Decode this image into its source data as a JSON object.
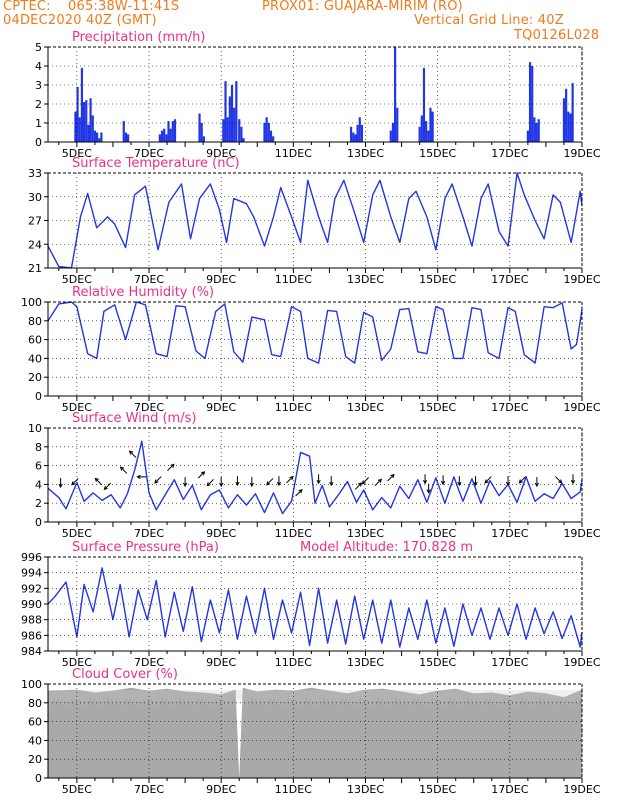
{
  "header": {
    "org": "CPTEC:",
    "coords": "065:38W-11:41S",
    "location": "PROX01: GUAJARA-MIRIM (RO)",
    "date": "04DEC2020 40Z (GMT)",
    "grid_note": "Vertical Grid Line: 40Z",
    "model": "TQ0126L028"
  },
  "colors": {
    "header": "#f07a1e",
    "title": "#e8308a",
    "series": "#2236e6",
    "cloud": "#a9a9a9",
    "arrow": "#000000"
  },
  "x_ticks": [
    "5DEC",
    "7DEC",
    "9DEC",
    "11DEC",
    "13DEC",
    "15DEC",
    "17DEC",
    "19DEC"
  ],
  "model_altitude": "Model Altitude: 170.828 m",
  "chart_data": [
    {
      "id": "precip",
      "type": "bar",
      "title": "Precipitation (mm/h)",
      "ylim": [
        0,
        5
      ],
      "yticks": [
        "0",
        "1",
        "2",
        "3",
        "4",
        "5"
      ],
      "x_range_days": [
        4.2,
        19.0
      ],
      "x": [
        4.96,
        5.02,
        5.08,
        5.14,
        5.2,
        5.26,
        5.32,
        5.38,
        5.44,
        5.5,
        5.56,
        5.62,
        5.68,
        6.3,
        6.36,
        6.42,
        7.3,
        7.36,
        7.42,
        7.48,
        7.54,
        7.6,
        7.66,
        7.72,
        8.4,
        8.46,
        8.52,
        9.06,
        9.12,
        9.18,
        9.24,
        9.3,
        9.36,
        9.42,
        9.5,
        9.56,
        9.62,
        10.2,
        10.26,
        10.32,
        10.38,
        10.44,
        12.6,
        12.66,
        12.72,
        12.78,
        12.84,
        12.9,
        13.7,
        13.76,
        13.82,
        13.88,
        14.5,
        14.56,
        14.62,
        14.68,
        14.74,
        14.8,
        14.86,
        17.5,
        17.56,
        17.62,
        17.68,
        17.74,
        17.8,
        18.5,
        18.56,
        18.62,
        18.68,
        18.74
      ],
      "values": [
        1.6,
        2.9,
        1.3,
        3.9,
        2.1,
        2.2,
        0.9,
        2.3,
        1.4,
        0.6,
        0.5,
        0.2,
        0.5,
        1.1,
        0.5,
        0.4,
        0.4,
        0.6,
        0.7,
        0.4,
        1.1,
        0.7,
        1.1,
        1.2,
        1.5,
        1.0,
        0.3,
        1.2,
        3.2,
        1.3,
        2.4,
        3.0,
        1.8,
        3.2,
        1.2,
        0.8,
        0.2,
        1.0,
        1.3,
        1.0,
        0.6,
        0.3,
        0.8,
        0.5,
        0.4,
        0.9,
        1.3,
        0.9,
        0.6,
        1.0,
        5.0,
        1.8,
        0.8,
        1.4,
        3.9,
        1.1,
        0.6,
        1.8,
        1.6,
        0.6,
        4.2,
        4.0,
        1.3,
        1.0,
        1.2,
        2.3,
        2.8,
        1.6,
        1.5,
        3.1
      ]
    },
    {
      "id": "temp",
      "type": "line",
      "title": "Surface Temperature (nC)",
      "ylim": [
        21,
        34
      ],
      "yticks": [
        "21",
        "24",
        "27",
        "30",
        "33"
      ],
      "x": [
        4.2,
        4.5,
        4.85,
        5.1,
        5.3,
        5.55,
        5.85,
        6.05,
        6.35,
        6.6,
        6.9,
        7.25,
        7.55,
        7.9,
        8.15,
        8.4,
        8.7,
        8.95,
        9.15,
        9.35,
        9.7,
        9.9,
        10.2,
        10.45,
        10.65,
        10.95,
        11.2,
        11.4,
        11.7,
        11.95,
        12.15,
        12.4,
        12.7,
        12.95,
        13.2,
        13.4,
        13.7,
        13.95,
        14.2,
        14.4,
        14.7,
        14.95,
        15.2,
        15.4,
        15.7,
        15.95,
        16.2,
        16.4,
        16.7,
        16.95,
        17.2,
        17.4,
        17.7,
        17.95,
        18.2,
        18.4,
        18.7,
        18.95,
        19.0
      ],
      "values": [
        24,
        21.2,
        21,
        28,
        31.2,
        26.5,
        28,
        27,
        23.8,
        31,
        32.2,
        23.5,
        30,
        32.5,
        25,
        30.5,
        32.5,
        29,
        24.5,
        30.5,
        29.8,
        28,
        24,
        28,
        32,
        28,
        24.5,
        33,
        28,
        24.5,
        30.5,
        33,
        28.5,
        24.5,
        31,
        33,
        28,
        24.5,
        30.5,
        31.5,
        28,
        23.5,
        30.5,
        32.5,
        28,
        24,
        30.5,
        32.5,
        26,
        24,
        34,
        31,
        27.5,
        25,
        31,
        30,
        24.5,
        31.5,
        29.5
      ]
    },
    {
      "id": "rh",
      "type": "line",
      "title": "Relative Humidity (%)",
      "ylim": [
        0,
        100
      ],
      "yticks": [
        "0",
        "20",
        "40",
        "60",
        "80",
        "100"
      ],
      "x": [
        4.2,
        4.5,
        4.85,
        5.0,
        5.3,
        5.55,
        5.75,
        6.05,
        6.35,
        6.65,
        6.9,
        7.2,
        7.5,
        7.75,
        8.0,
        8.3,
        8.55,
        8.85,
        9.1,
        9.35,
        9.6,
        9.85,
        10.2,
        10.4,
        10.65,
        10.95,
        11.2,
        11.4,
        11.7,
        11.95,
        12.2,
        12.45,
        12.7,
        12.95,
        13.2,
        13.45,
        13.7,
        13.95,
        14.2,
        14.45,
        14.7,
        14.95,
        15.15,
        15.45,
        15.7,
        15.95,
        16.2,
        16.4,
        16.7,
        16.95,
        17.15,
        17.4,
        17.7,
        17.95,
        18.2,
        18.45,
        18.7,
        18.85,
        19.0
      ],
      "values": [
        80,
        98,
        100,
        95,
        45,
        40,
        90,
        97,
        60,
        100,
        97,
        45,
        42,
        96,
        95,
        48,
        40,
        90,
        98,
        47,
        36,
        84,
        81,
        44,
        42,
        95,
        90,
        40,
        35,
        91,
        90,
        42,
        35,
        89,
        84,
        38,
        50,
        92,
        93,
        47,
        45,
        95,
        92,
        40,
        40,
        94,
        92,
        46,
        40,
        94,
        90,
        44,
        35,
        95,
        94,
        99,
        50,
        55,
        92
      ]
    },
    {
      "id": "wind",
      "type": "line",
      "title": "Surface Wind (m/s)",
      "ylim": [
        0,
        10
      ],
      "yticks": [
        "0",
        "2",
        "4",
        "6",
        "8",
        "10"
      ],
      "x": [
        4.2,
        4.5,
        4.7,
        5.0,
        5.2,
        5.45,
        5.7,
        5.95,
        6.2,
        6.4,
        6.6,
        6.8,
        7.0,
        7.2,
        7.45,
        7.7,
        7.95,
        8.2,
        8.45,
        8.7,
        8.95,
        9.2,
        9.45,
        9.7,
        9.95,
        10.2,
        10.45,
        10.7,
        10.95,
        11.2,
        11.45,
        11.6,
        11.8,
        12.0,
        12.25,
        12.5,
        12.75,
        12.95,
        13.2,
        13.45,
        13.7,
        13.95,
        14.2,
        14.45,
        14.7,
        14.95,
        15.2,
        15.45,
        15.7,
        15.95,
        16.2,
        16.45,
        16.7,
        16.95,
        17.2,
        17.45,
        17.7,
        17.95,
        18.2,
        18.45,
        18.7,
        18.95,
        19.0
      ],
      "values": [
        3.6,
        2.6,
        1.4,
        4.2,
        2.2,
        3.1,
        2.3,
        2.9,
        1.5,
        3.0,
        5.5,
        8.6,
        3.1,
        1.3,
        2.9,
        4.5,
        2.4,
        3.9,
        1.3,
        2.9,
        3.4,
        1.5,
        2.9,
        1.8,
        3.0,
        1.0,
        3.1,
        0.9,
        2.2,
        7.4,
        7.0,
        2.0,
        3.9,
        1.6,
        2.9,
        4.3,
        2.1,
        3.4,
        1.3,
        2.6,
        1.5,
        3.8,
        2.5,
        4.5,
        2.1,
        4.7,
        2.0,
        4.8,
        2.2,
        4.6,
        2.0,
        4.4,
        2.8,
        4.0,
        2.1,
        4.8,
        2.2,
        3.0,
        2.5,
        4.1,
        2.5,
        3.2,
        4.5
      ],
      "arrows": [
        {
          "x": 4.55,
          "y": 4.2,
          "dir": "down"
        },
        {
          "x": 4.95,
          "y": 4.3,
          "dir": "down-left"
        },
        {
          "x": 5.6,
          "y": 4.3,
          "dir": "up-left"
        },
        {
          "x": 5.85,
          "y": 3.8,
          "dir": "down-left"
        },
        {
          "x": 6.3,
          "y": 5.5,
          "dir": "up-left"
        },
        {
          "x": 6.55,
          "y": 7.2,
          "dir": "up-left"
        },
        {
          "x": 6.8,
          "y": 4.8,
          "dir": "left"
        },
        {
          "x": 7.25,
          "y": 4.5,
          "dir": "down-left"
        },
        {
          "x": 7.6,
          "y": 5.8,
          "dir": "up-right"
        },
        {
          "x": 8.0,
          "y": 4.3,
          "dir": "down"
        },
        {
          "x": 8.45,
          "y": 5.0,
          "dir": "up-right"
        },
        {
          "x": 8.7,
          "y": 4.2,
          "dir": "down-left"
        },
        {
          "x": 9.0,
          "y": 4.3,
          "dir": "down"
        },
        {
          "x": 9.45,
          "y": 4.4,
          "dir": "down"
        },
        {
          "x": 9.85,
          "y": 4.3,
          "dir": "down"
        },
        {
          "x": 10.35,
          "y": 4.3,
          "dir": "down-left"
        },
        {
          "x": 10.6,
          "y": 4.4,
          "dir": "down"
        },
        {
          "x": 10.9,
          "y": 4.5,
          "dir": "up-right"
        },
        {
          "x": 11.15,
          "y": 3.1,
          "dir": "up-right"
        },
        {
          "x": 11.7,
          "y": 4.6,
          "dir": "down"
        },
        {
          "x": 12.05,
          "y": 4.4,
          "dir": "down"
        },
        {
          "x": 12.8,
          "y": 3.8,
          "dir": "up-right"
        },
        {
          "x": 13.0,
          "y": 4.4,
          "dir": "down-left"
        },
        {
          "x": 13.35,
          "y": 4.2,
          "dir": "up-right"
        },
        {
          "x": 13.7,
          "y": 4.7,
          "dir": "up-right"
        },
        {
          "x": 14.65,
          "y": 4.6,
          "dir": "down"
        },
        {
          "x": 14.75,
          "y": 3.6,
          "dir": "down"
        },
        {
          "x": 15.15,
          "y": 4.5,
          "dir": "down"
        },
        {
          "x": 15.6,
          "y": 4.4,
          "dir": "down"
        },
        {
          "x": 16.05,
          "y": 4.4,
          "dir": "down"
        },
        {
          "x": 16.4,
          "y": 4.5,
          "dir": "down-left"
        },
        {
          "x": 16.95,
          "y": 4.4,
          "dir": "down"
        },
        {
          "x": 17.35,
          "y": 4.5,
          "dir": "down-left"
        },
        {
          "x": 17.75,
          "y": 4.3,
          "dir": "down"
        },
        {
          "x": 18.35,
          "y": 4.5,
          "dir": "down-right"
        },
        {
          "x": 18.75,
          "y": 4.6,
          "dir": "down"
        }
      ]
    },
    {
      "id": "pressure",
      "type": "line",
      "title": "Surface Pressure (hPa)",
      "ylim": [
        984,
        996
      ],
      "yticks": [
        "984",
        "986",
        "988",
        "990",
        "992",
        "994",
        "996"
      ],
      "x": [
        4.2,
        4.4,
        4.7,
        5.0,
        5.2,
        5.45,
        5.7,
        6.0,
        6.2,
        6.45,
        6.7,
        6.95,
        7.2,
        7.45,
        7.7,
        7.95,
        8.2,
        8.45,
        8.7,
        8.95,
        9.2,
        9.45,
        9.7,
        9.95,
        10.2,
        10.45,
        10.7,
        10.95,
        11.2,
        11.45,
        11.7,
        11.95,
        12.2,
        12.45,
        12.7,
        12.95,
        13.2,
        13.45,
        13.7,
        13.95,
        14.2,
        14.45,
        14.7,
        14.95,
        15.2,
        15.45,
        15.7,
        15.95,
        16.2,
        16.45,
        16.7,
        16.95,
        17.2,
        17.45,
        17.7,
        17.95,
        18.2,
        18.45,
        18.7,
        18.95,
        19.0
      ],
      "values": [
        990,
        991,
        992.8,
        985.8,
        992.5,
        989,
        994.6,
        988,
        992.5,
        985.8,
        991.8,
        988,
        993,
        985.8,
        991.5,
        986.5,
        992.2,
        985.2,
        990.5,
        986.3,
        991.8,
        985.5,
        991,
        986.2,
        992,
        985.5,
        990.5,
        986.3,
        991.5,
        984.7,
        992,
        985,
        990.5,
        984.9,
        991,
        985.5,
        990.5,
        985,
        990.5,
        984.5,
        989.5,
        985.5,
        990.5,
        985,
        989.5,
        984.6,
        990,
        986,
        989.5,
        985.5,
        989.5,
        986,
        990,
        985.5,
        989.5,
        986.2,
        989,
        985.6,
        988.5,
        984.5,
        986.4
      ]
    },
    {
      "id": "cloud",
      "type": "area",
      "title": "Cloud Cover (%)",
      "ylim": [
        0,
        100
      ],
      "yticks": [
        "0",
        "20",
        "40",
        "60",
        "80",
        "100"
      ],
      "x": [
        4.2,
        5.0,
        5.5,
        6.0,
        6.5,
        7.0,
        7.5,
        8.0,
        8.5,
        9.0,
        9.4,
        9.5,
        9.6,
        9.7,
        10.0,
        10.5,
        11.0,
        11.5,
        12.0,
        12.5,
        13.0,
        13.5,
        14.0,
        14.5,
        15.0,
        15.5,
        16.0,
        16.5,
        17.0,
        17.5,
        18.0,
        18.5,
        19.0
      ],
      "values": [
        93,
        94,
        91,
        93,
        96,
        93,
        95,
        92,
        91,
        89,
        94,
        0,
        96,
        95,
        92,
        94,
        93,
        96,
        93,
        90,
        94,
        95,
        92,
        89,
        93,
        95,
        90,
        91,
        88,
        92,
        90,
        86,
        94
      ]
    }
  ]
}
